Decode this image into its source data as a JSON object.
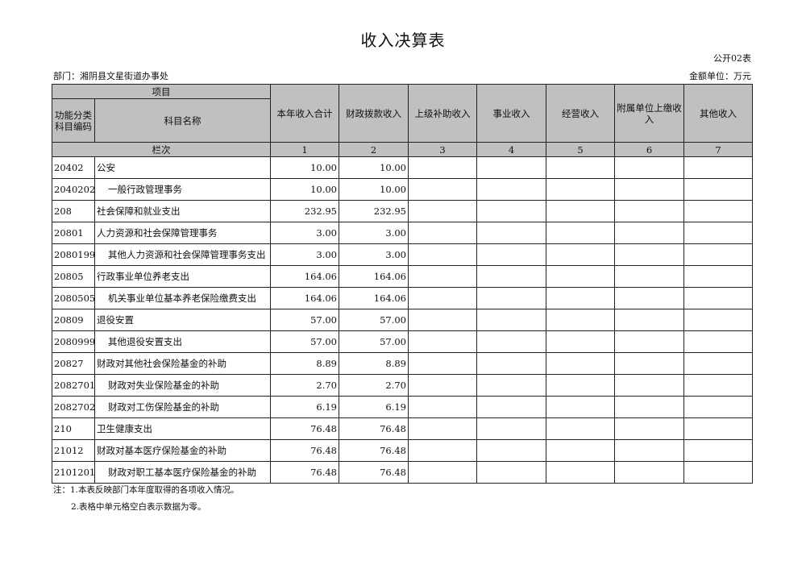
{
  "title": "收入决算表",
  "form_no": "公开02表",
  "department": "部门：湘阴县文星街道办事处",
  "unit": "金额单位：万元",
  "header": {
    "item": "项目",
    "code": "功能分类科目编码",
    "name": "科目名称",
    "columns": [
      "本年收入合计",
      "财政拨款收入",
      "上级补助收入",
      "事业收入",
      "经营收入",
      "附属单位上缴收入",
      "其他收入"
    ],
    "row_label": "栏次",
    "column_numbers": [
      "1",
      "2",
      "3",
      "4",
      "5",
      "6",
      "7"
    ]
  },
  "rows": [
    {
      "code": "20402",
      "name": "公安",
      "indent": false,
      "values": [
        "10.00",
        "10.00",
        "",
        "",
        "",
        "",
        ""
      ]
    },
    {
      "code": "2040202",
      "name": "一般行政管理事务",
      "indent": true,
      "values": [
        "10.00",
        "10.00",
        "",
        "",
        "",
        "",
        ""
      ]
    },
    {
      "code": "208",
      "name": "社会保障和就业支出",
      "indent": false,
      "values": [
        "232.95",
        "232.95",
        "",
        "",
        "",
        "",
        ""
      ]
    },
    {
      "code": "20801",
      "name": "人力资源和社会保障管理事务",
      "indent": false,
      "values": [
        "3.00",
        "3.00",
        "",
        "",
        "",
        "",
        ""
      ]
    },
    {
      "code": "2080199",
      "name": "其他人力资源和社会保障管理事务支出",
      "indent": true,
      "values": [
        "3.00",
        "3.00",
        "",
        "",
        "",
        "",
        ""
      ]
    },
    {
      "code": "20805",
      "name": "行政事业单位养老支出",
      "indent": false,
      "values": [
        "164.06",
        "164.06",
        "",
        "",
        "",
        "",
        ""
      ]
    },
    {
      "code": "2080505",
      "name": "机关事业单位基本养老保险缴费支出",
      "indent": true,
      "values": [
        "164.06",
        "164.06",
        "",
        "",
        "",
        "",
        ""
      ]
    },
    {
      "code": "20809",
      "name": "退役安置",
      "indent": false,
      "values": [
        "57.00",
        "57.00",
        "",
        "",
        "",
        "",
        ""
      ]
    },
    {
      "code": "2080999",
      "name": "其他退役安置支出",
      "indent": true,
      "values": [
        "57.00",
        "57.00",
        "",
        "",
        "",
        "",
        ""
      ]
    },
    {
      "code": "20827",
      "name": "财政对其他社会保险基金的补助",
      "indent": false,
      "values": [
        "8.89",
        "8.89",
        "",
        "",
        "",
        "",
        ""
      ]
    },
    {
      "code": "2082701",
      "name": "财政对失业保险基金的补助",
      "indent": true,
      "values": [
        "2.70",
        "2.70",
        "",
        "",
        "",
        "",
        ""
      ]
    },
    {
      "code": "2082702",
      "name": "财政对工伤保险基金的补助",
      "indent": true,
      "values": [
        "6.19",
        "6.19",
        "",
        "",
        "",
        "",
        ""
      ]
    },
    {
      "code": "210",
      "name": "卫生健康支出",
      "indent": false,
      "values": [
        "76.48",
        "76.48",
        "",
        "",
        "",
        "",
        ""
      ]
    },
    {
      "code": "21012",
      "name": "财政对基本医疗保险基金的补助",
      "indent": false,
      "values": [
        "76.48",
        "76.48",
        "",
        "",
        "",
        "",
        ""
      ]
    },
    {
      "code": "2101201",
      "name": "财政对职工基本医疗保险基金的补助",
      "indent": true,
      "values": [
        "76.48",
        "76.48",
        "",
        "",
        "",
        "",
        ""
      ]
    }
  ],
  "notes": [
    "注：1.本表反映部门本年度取得的各项收入情况。",
    "2.表格中单元格空白表示数据为零。"
  ],
  "colors": {
    "header_bg": "#c0c0c0",
    "border": "#222222"
  }
}
